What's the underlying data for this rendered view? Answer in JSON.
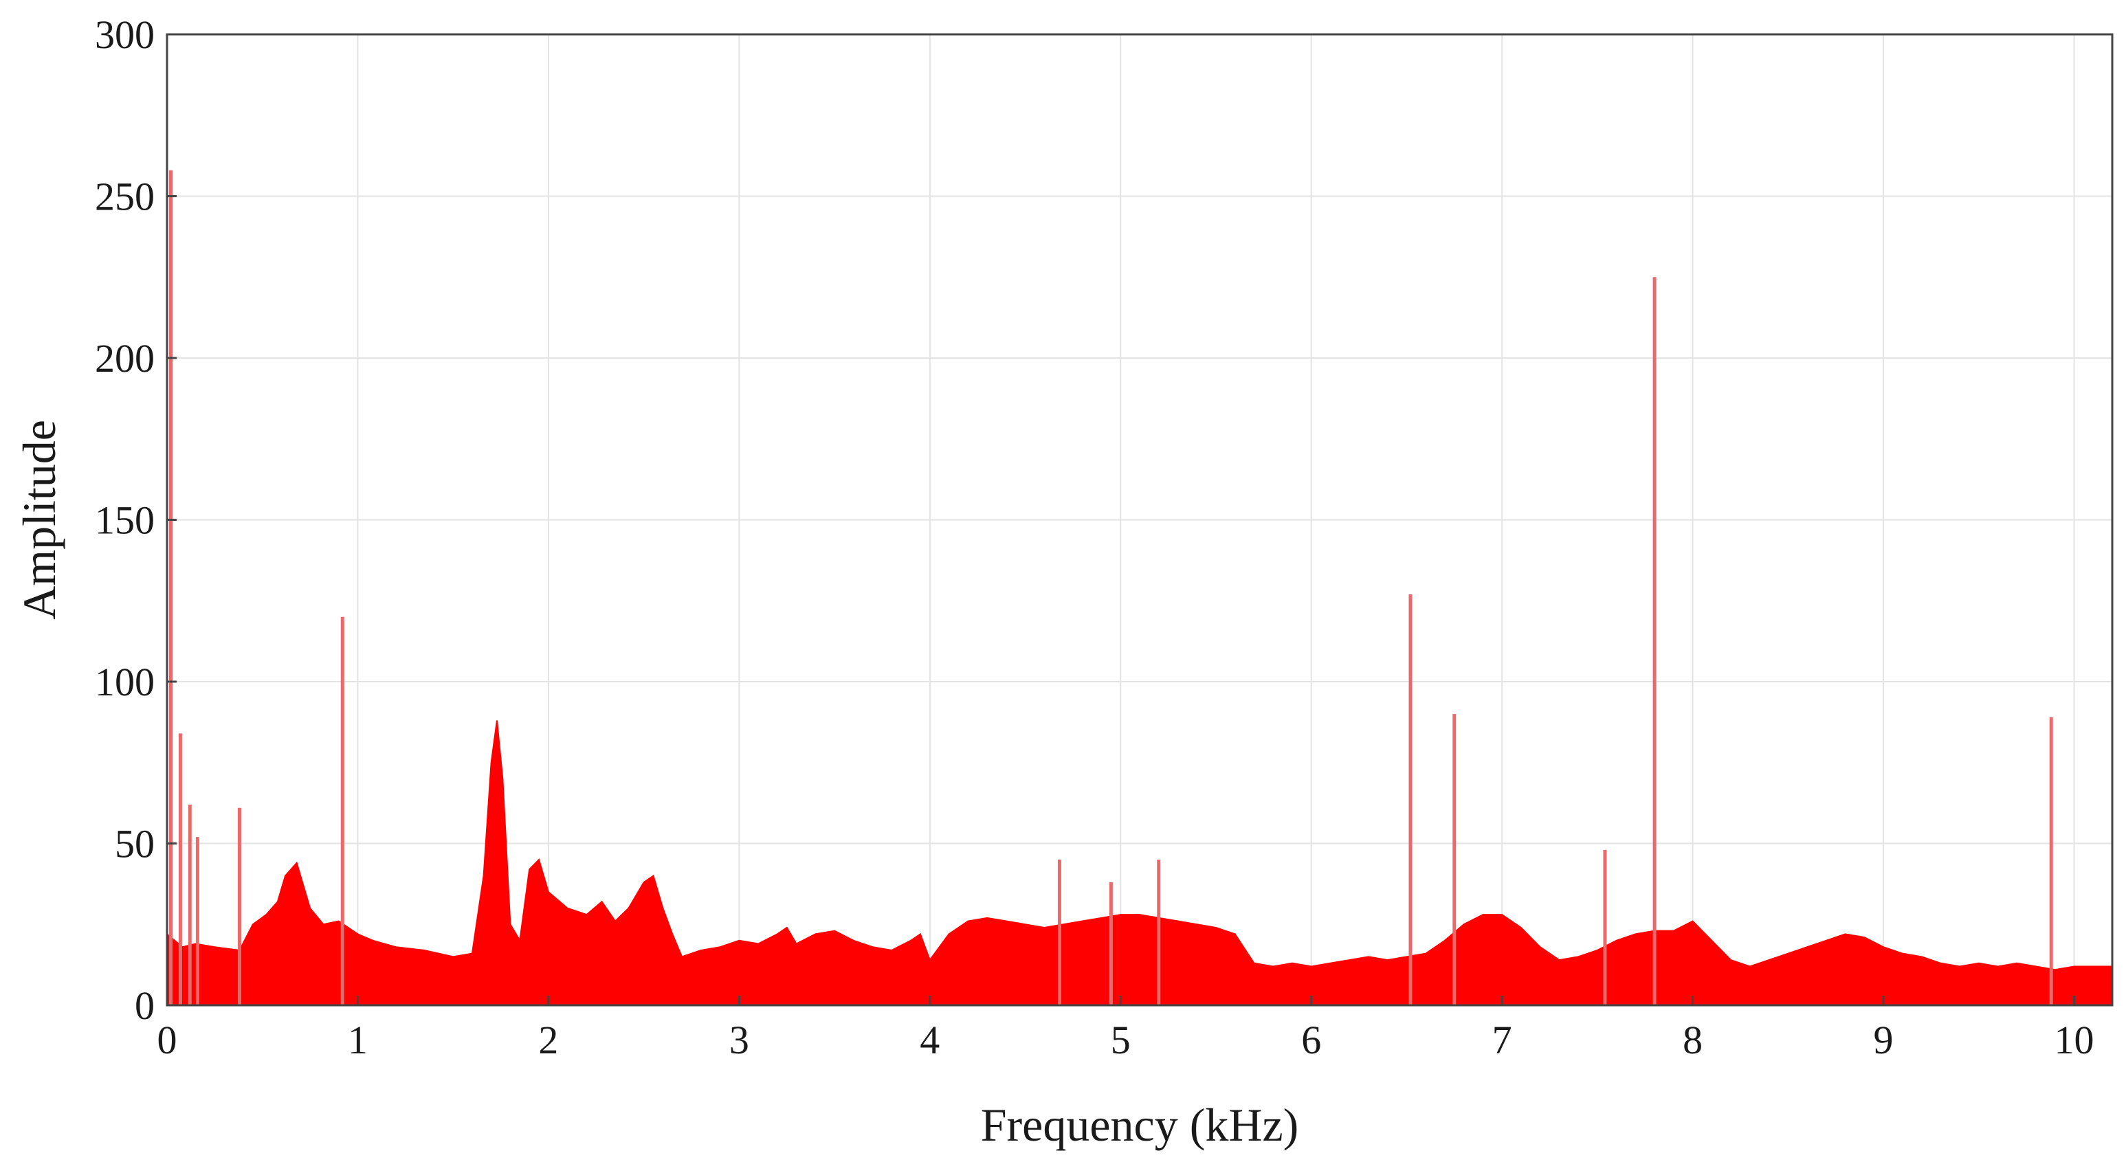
{
  "chart_data": {
    "type": "area",
    "title": "",
    "xlabel": "Frequency (kHz)",
    "ylabel": "Amplitude",
    "xlim": [
      0,
      10.2
    ],
    "ylim": [
      0,
      300
    ],
    "xticks": [
      0,
      1,
      2,
      3,
      4,
      5,
      6,
      7,
      8,
      9,
      10
    ],
    "yticks": [
      0,
      50,
      100,
      150,
      200,
      250,
      300
    ],
    "xtick_labels": [
      "0",
      "1",
      "2",
      "3",
      "4",
      "5",
      "6",
      "7",
      "8",
      "9",
      "10"
    ],
    "ytick_labels": [
      "0",
      "50",
      "100",
      "150",
      "200",
      "250",
      "300"
    ],
    "grid": true,
    "color": "#ff0000",
    "series": [
      {
        "x": [
          0.0,
          0.04,
          0.08,
          0.15,
          0.25,
          0.38,
          0.45,
          0.52,
          0.58,
          0.62,
          0.68,
          0.75,
          0.82,
          0.9,
          1.0,
          1.08,
          1.2,
          1.35,
          1.5,
          1.6,
          1.66,
          1.7,
          1.73,
          1.76,
          1.8,
          1.85,
          1.9,
          1.95,
          2.0,
          2.1,
          2.2,
          2.28,
          2.35,
          2.42,
          2.5,
          2.55,
          2.6,
          2.65,
          2.7,
          2.8,
          2.9,
          3.0,
          3.1,
          3.2,
          3.25,
          3.3,
          3.4,
          3.5,
          3.6,
          3.7,
          3.8,
          3.9,
          3.95,
          4.0,
          4.1,
          4.2,
          4.3,
          4.4,
          4.5,
          4.6,
          4.7,
          4.8,
          4.9,
          5.0,
          5.1,
          5.2,
          5.3,
          5.4,
          5.5,
          5.6,
          5.7,
          5.8,
          5.9,
          6.0,
          6.1,
          6.2,
          6.3,
          6.4,
          6.5,
          6.6,
          6.7,
          6.8,
          6.9,
          7.0,
          7.1,
          7.2,
          7.3,
          7.4,
          7.5,
          7.6,
          7.7,
          7.8,
          7.9,
          8.0,
          8.1,
          8.2,
          8.3,
          8.4,
          8.5,
          8.6,
          8.7,
          8.8,
          8.9,
          9.0,
          9.1,
          9.2,
          9.3,
          9.4,
          9.5,
          9.6,
          9.7,
          9.8,
          9.9,
          10.0,
          10.1,
          10.2
        ],
        "y": [
          22,
          20,
          18,
          19,
          18,
          17,
          25,
          28,
          32,
          40,
          44,
          30,
          25,
          26,
          22,
          20,
          18,
          17,
          15,
          16,
          40,
          75,
          88,
          70,
          25,
          20,
          42,
          45,
          35,
          30,
          28,
          32,
          26,
          30,
          38,
          40,
          30,
          22,
          15,
          17,
          18,
          20,
          19,
          22,
          24,
          19,
          22,
          23,
          20,
          18,
          17,
          20,
          22,
          14,
          22,
          26,
          27,
          26,
          25,
          24,
          25,
          26,
          27,
          28,
          28,
          27,
          26,
          25,
          24,
          22,
          13,
          12,
          13,
          12,
          13,
          14,
          15,
          14,
          15,
          16,
          20,
          25,
          28,
          28,
          24,
          18,
          14,
          15,
          17,
          20,
          22,
          23,
          23,
          26,
          20,
          14,
          12,
          14,
          16,
          18,
          20,
          22,
          21,
          18,
          16,
          15,
          13,
          12,
          13,
          12,
          13,
          12,
          11,
          12,
          12,
          12
        ]
      }
    ],
    "spikes": [
      {
        "x": 0.02,
        "y": 258
      },
      {
        "x": 0.07,
        "y": 84
      },
      {
        "x": 0.12,
        "y": 62
      },
      {
        "x": 0.16,
        "y": 52
      },
      {
        "x": 0.38,
        "y": 61
      },
      {
        "x": 0.92,
        "y": 120
      },
      {
        "x": 4.68,
        "y": 45
      },
      {
        "x": 4.95,
        "y": 38
      },
      {
        "x": 5.2,
        "y": 45
      },
      {
        "x": 6.52,
        "y": 127
      },
      {
        "x": 6.75,
        "y": 90
      },
      {
        "x": 7.54,
        "y": 48
      },
      {
        "x": 7.8,
        "y": 225
      },
      {
        "x": 9.88,
        "y": 89
      }
    ]
  }
}
